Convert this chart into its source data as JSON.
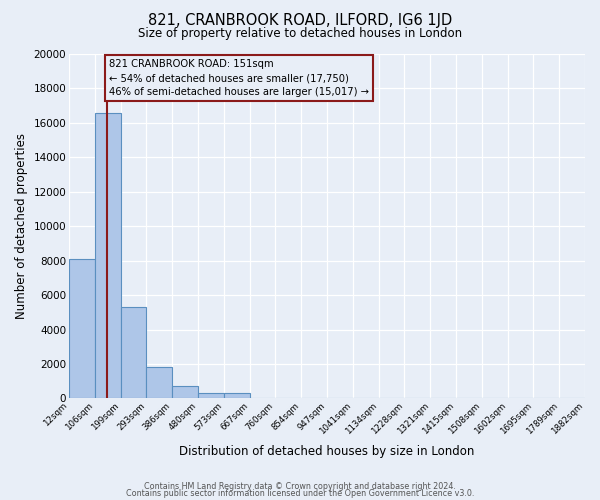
{
  "title_line1": "821, CRANBROOK ROAD, ILFORD, IG6 1JD",
  "title_line2": "Size of property relative to detached houses in London",
  "xlabel": "Distribution of detached houses by size in London",
  "ylabel": "Number of detached properties",
  "bin_labels": [
    "12sqm",
    "106sqm",
    "199sqm",
    "293sqm",
    "386sqm",
    "480sqm",
    "573sqm",
    "667sqm",
    "760sqm",
    "854sqm",
    "947sqm",
    "1041sqm",
    "1134sqm",
    "1228sqm",
    "1321sqm",
    "1415sqm",
    "1508sqm",
    "1602sqm",
    "1695sqm",
    "1789sqm",
    "1882sqm"
  ],
  "bar_values": [
    8100,
    16600,
    5300,
    1800,
    750,
    300,
    300,
    0,
    0,
    0,
    0,
    0,
    0,
    0,
    0,
    0,
    0,
    0,
    0,
    0
  ],
  "bar_color": "#aec6e8",
  "bar_edge_color": "#5a8fc0",
  "red_line_color": "#8b1a1a",
  "annotation_text_line1": "821 CRANBROOK ROAD: 151sqm",
  "annotation_text_line2": "← 54% of detached houses are smaller (17,750)",
  "annotation_text_line3": "46% of semi-detached houses are larger (15,017) →",
  "annotation_box_edge": "#8b1a1a",
  "ylim": [
    0,
    20000
  ],
  "yticks": [
    0,
    2000,
    4000,
    6000,
    8000,
    10000,
    12000,
    14000,
    16000,
    18000,
    20000
  ],
  "background_color": "#e8eef7",
  "plot_bg_color": "#dde6f2",
  "grid_color": "#ffffff",
  "footer_line1": "Contains HM Land Registry data © Crown copyright and database right 2024.",
  "footer_line2": "Contains public sector information licensed under the Open Government Licence v3.0."
}
